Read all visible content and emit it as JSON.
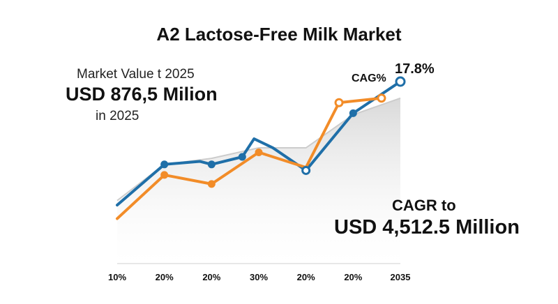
{
  "chart_data": {
    "type": "line",
    "title": "A2 Lactose-Free Milk Market",
    "x_tick_labels": [
      "10%",
      "20%",
      "20%",
      "30%",
      "20%",
      "20%",
      "2035"
    ],
    "ylim": [
      0,
      100
    ],
    "grid": false,
    "series": [
      {
        "color": "#1f6fa8",
        "points": [
          {
            "x": 0.0,
            "y": 18
          },
          {
            "x": 1.0,
            "y": 45
          },
          {
            "x": 1.75,
            "y": 47
          },
          {
            "x": 2.0,
            "y": 45
          },
          {
            "x": 2.65,
            "y": 50
          },
          {
            "x": 2.9,
            "y": 62
          },
          {
            "x": 3.3,
            "y": 56
          },
          {
            "x": 4.0,
            "y": 41
          },
          {
            "x": 5.0,
            "y": 79
          },
          {
            "x": 6.0,
            "y": 100
          }
        ],
        "marker_indices": [
          1,
          3,
          4,
          7,
          8,
          9
        ]
      },
      {
        "color": "#f28c28",
        "points": [
          {
            "x": 0.0,
            "y": 9
          },
          {
            "x": 1.0,
            "y": 38
          },
          {
            "x": 2.0,
            "y": 32
          },
          {
            "x": 3.0,
            "y": 53
          },
          {
            "x": 4.0,
            "y": 43
          },
          {
            "x": 4.7,
            "y": 86
          },
          {
            "x": 5.6,
            "y": 89
          }
        ],
        "marker_indices": [
          1,
          2,
          3,
          5,
          6
        ]
      }
    ],
    "area": [
      {
        "x": 0.0,
        "y": 21
      },
      {
        "x": 1.0,
        "y": 45
      },
      {
        "x": 2.0,
        "y": 49
      },
      {
        "x": 3.0,
        "y": 56
      },
      {
        "x": 4.0,
        "y": 56
      },
      {
        "x": 5.0,
        "y": 78
      },
      {
        "x": 6.0,
        "y": 89
      }
    ]
  },
  "header": {
    "title": "A2 Lactose-Free Milk Market"
  },
  "market_value": {
    "label": "Market Value t 2025",
    "value": "USD 876,5 Milion",
    "year": "in 2025"
  },
  "cagr": {
    "tag": "CAG%",
    "percent": "17.8%",
    "to_label": "CAGR to",
    "end_value": "USD 4,512.5 Million"
  },
  "colors": {
    "blue": "#1f6fa8",
    "orange": "#f28c28",
    "area": "#e4e4e4"
  }
}
